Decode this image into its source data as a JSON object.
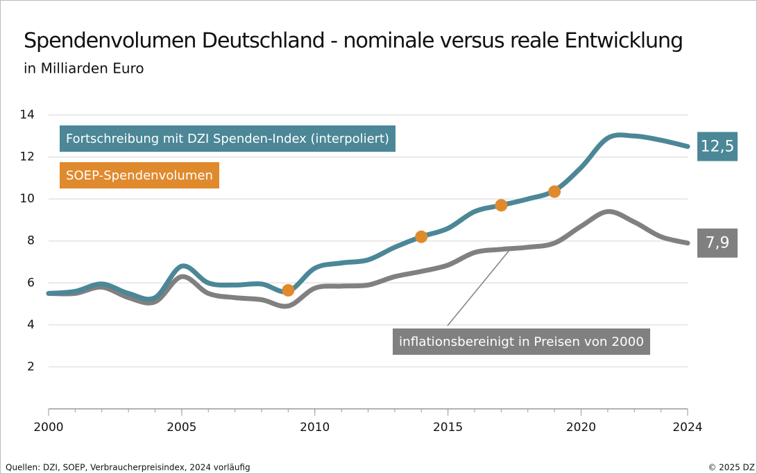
{
  "chart_data": {
    "type": "line",
    "title": "Spendenvolumen Deutschland - nominale versus reale Entwicklung",
    "subtitle": "in Milliarden Euro",
    "x": [
      2000,
      2001,
      2002,
      2003,
      2004,
      2005,
      2006,
      2007,
      2008,
      2009,
      2010,
      2011,
      2012,
      2013,
      2014,
      2015,
      2016,
      2017,
      2018,
      2019,
      2020,
      2021,
      2022,
      2023,
      2024
    ],
    "xlim": [
      2000,
      2024
    ],
    "xticks": [
      2000,
      2005,
      2010,
      2015,
      2020,
      2024
    ],
    "ylim": [
      0,
      14
    ],
    "yticks": [
      2,
      4,
      6,
      8,
      10,
      12,
      14
    ],
    "grid": true,
    "series": [
      {
        "name": "Fortschreibung mit DZI Spenden-Index (interpoliert)",
        "color": "#4b8797",
        "values": [
          5.5,
          5.6,
          5.95,
          5.5,
          5.3,
          6.8,
          6.0,
          5.9,
          5.95,
          5.6,
          6.7,
          6.95,
          7.1,
          7.7,
          8.2,
          8.6,
          9.4,
          9.7,
          10.0,
          10.4,
          11.5,
          12.9,
          13.0,
          12.8,
          12.5
        ],
        "value_labels": [
          null,
          null,
          null,
          null,
          null,
          null,
          null,
          null,
          null,
          null,
          null,
          null,
          null,
          null,
          null,
          null,
          null,
          null,
          null,
          null,
          null,
          null,
          null,
          null,
          "12,5"
        ]
      },
      {
        "name": "inflationsbereinigt in Preisen von 2000",
        "color": "#808080",
        "values": [
          5.5,
          5.5,
          5.8,
          5.3,
          5.1,
          6.3,
          5.5,
          5.3,
          5.2,
          4.9,
          5.75,
          5.85,
          5.9,
          6.3,
          6.55,
          6.85,
          7.45,
          7.6,
          7.7,
          7.9,
          8.7,
          9.4,
          8.9,
          8.2,
          7.9
        ],
        "value_labels": [
          null,
          null,
          null,
          null,
          null,
          null,
          null,
          null,
          null,
          null,
          null,
          null,
          null,
          null,
          null,
          null,
          null,
          null,
          null,
          null,
          null,
          null,
          null,
          null,
          "7,9"
        ]
      },
      {
        "name": "SOEP-Spendenvolumen",
        "color": "#e08a2e",
        "type": "scatter",
        "x": [
          2009,
          2014,
          2017,
          2019
        ],
        "values": [
          5.65,
          8.2,
          9.7,
          10.35
        ]
      }
    ],
    "source": "Quellen: DZI, SOEP, Verbraucherpreisindex, 2024 vorläufig",
    "copyright": "© 2025 DZ"
  }
}
